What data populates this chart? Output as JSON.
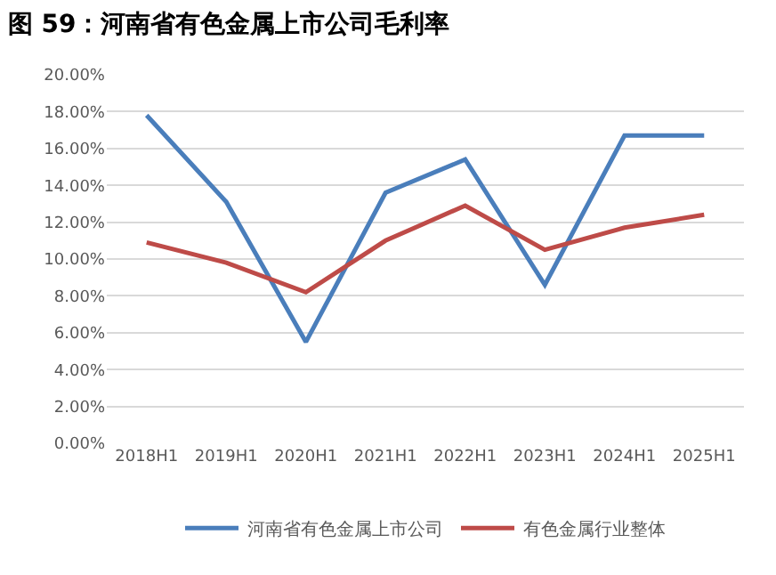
{
  "chart_data": {
    "type": "line",
    "title": "图 59：河南省有色金属上市公司毛利率",
    "categories": [
      "2018H1",
      "2019H1",
      "2020H1",
      "2021H1",
      "2022H1",
      "2023H1",
      "2024H1",
      "2025H1"
    ],
    "series": [
      {
        "name": "河南省有色金属上市公司",
        "color": "#4a7ebb",
        "values": [
          17.8,
          13.1,
          5.5,
          13.6,
          15.4,
          8.6,
          16.7,
          16.7
        ]
      },
      {
        "name": "有色金属行业整体",
        "color": "#be4b48",
        "values": [
          10.9,
          9.8,
          8.2,
          11.0,
          12.9,
          10.5,
          11.7,
          12.4
        ]
      }
    ],
    "ylim": [
      0,
      20
    ],
    "yticks": [
      {
        "value": 0,
        "label": "0.00%"
      },
      {
        "value": 2,
        "label": "2.00%"
      },
      {
        "value": 4,
        "label": "4.00%"
      },
      {
        "value": 6,
        "label": "6.00%"
      },
      {
        "value": 8,
        "label": "8.00%"
      },
      {
        "value": 10,
        "label": "10.00%"
      },
      {
        "value": 12,
        "label": "12.00%"
      },
      {
        "value": 14,
        "label": "14.00%"
      },
      {
        "value": 16,
        "label": "16.00%"
      },
      {
        "value": 18,
        "label": "18.00%"
      },
      {
        "value": 20,
        "label": "20.00%"
      }
    ],
    "grid": "y",
    "legend": "bottom",
    "marker": "none",
    "line_style": "solid"
  }
}
